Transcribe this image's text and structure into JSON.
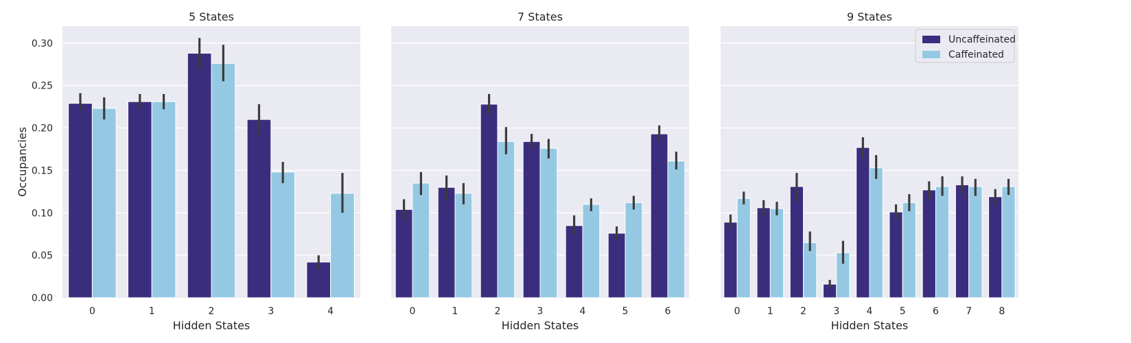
{
  "colors": {
    "background": "#ffffff",
    "panel_face": "#eaeaf2",
    "grid": "#ffffff",
    "uncaffeinated": "#3b2d7e",
    "caffeinated": "#95c9e3",
    "errorbar": "#3c3c3c"
  },
  "ylabel": "Occupancies",
  "legend": {
    "location": "upper-right of third panel",
    "entries": [
      "Uncaffeinated",
      "Caffeinated"
    ]
  },
  "chart_data": [
    {
      "type": "bar",
      "title": "5 States",
      "xlabel": "Hidden States",
      "ylabel": "Occupancies",
      "categories": [
        "0",
        "1",
        "2",
        "3",
        "4"
      ],
      "ylim": [
        0,
        0.32
      ],
      "yticks": [
        "0.00",
        "0.05",
        "0.10",
        "0.15",
        "0.20",
        "0.25",
        "0.30"
      ],
      "grid": true,
      "series": [
        {
          "name": "Uncaffeinated",
          "values": [
            0.229,
            0.231,
            0.288,
            0.21,
            0.042
          ],
          "err_low": [
            0.22,
            0.222,
            0.268,
            0.19,
            0.033
          ],
          "err_high": [
            0.241,
            0.24,
            0.306,
            0.228,
            0.05
          ]
        },
        {
          "name": "Caffeinated",
          "values": [
            0.223,
            0.231,
            0.276,
            0.148,
            0.123
          ],
          "err_low": [
            0.21,
            0.222,
            0.255,
            0.135,
            0.1
          ],
          "err_high": [
            0.236,
            0.24,
            0.298,
            0.16,
            0.147
          ]
        }
      ]
    },
    {
      "type": "bar",
      "title": "7 States",
      "xlabel": "Hidden States",
      "categories": [
        "0",
        "1",
        "2",
        "3",
        "4",
        "5",
        "6"
      ],
      "ylim": [
        0,
        0.32
      ],
      "grid": true,
      "series": [
        {
          "name": "Uncaffeinated",
          "values": [
            0.104,
            0.13,
            0.228,
            0.184,
            0.085,
            0.076,
            0.193
          ],
          "err_low": [
            0.092,
            0.115,
            0.217,
            0.176,
            0.075,
            0.068,
            0.184
          ],
          "err_high": [
            0.116,
            0.144,
            0.24,
            0.193,
            0.097,
            0.084,
            0.203
          ]
        },
        {
          "name": "Caffeinated",
          "values": [
            0.135,
            0.123,
            0.184,
            0.176,
            0.11,
            0.112,
            0.161
          ],
          "err_low": [
            0.121,
            0.11,
            0.169,
            0.164,
            0.102,
            0.104,
            0.151
          ],
          "err_high": [
            0.148,
            0.135,
            0.201,
            0.187,
            0.117,
            0.12,
            0.172
          ]
        }
      ]
    },
    {
      "type": "bar",
      "title": "9 States",
      "xlabel": "Hidden States",
      "categories": [
        "0",
        "1",
        "2",
        "3",
        "4",
        "5",
        "6",
        "7",
        "8"
      ],
      "ylim": [
        0,
        0.32
      ],
      "grid": true,
      "series": [
        {
          "name": "Uncaffeinated",
          "values": [
            0.089,
            0.106,
            0.131,
            0.016,
            0.177,
            0.101,
            0.127,
            0.133,
            0.119
          ],
          "err_low": [
            0.081,
            0.097,
            0.113,
            0.012,
            0.164,
            0.092,
            0.116,
            0.122,
            0.11
          ],
          "err_high": [
            0.098,
            0.115,
            0.147,
            0.021,
            0.189,
            0.11,
            0.137,
            0.143,
            0.128
          ]
        },
        {
          "name": "Caffeinated",
          "values": [
            0.117,
            0.105,
            0.065,
            0.053,
            0.153,
            0.112,
            0.131,
            0.131,
            0.131
          ],
          "err_low": [
            0.11,
            0.097,
            0.055,
            0.04,
            0.14,
            0.102,
            0.12,
            0.12,
            0.121
          ],
          "err_high": [
            0.125,
            0.113,
            0.078,
            0.067,
            0.168,
            0.122,
            0.143,
            0.14,
            0.14
          ]
        }
      ]
    }
  ]
}
